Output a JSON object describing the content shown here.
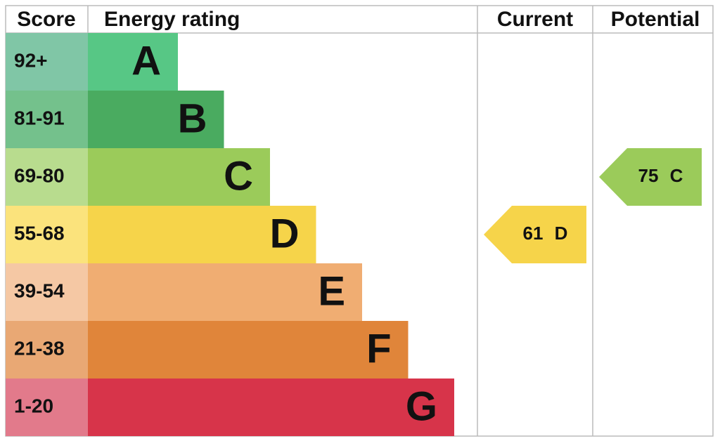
{
  "header": {
    "score": "Score",
    "rating": "Energy rating",
    "current": "Current",
    "potential": "Potential"
  },
  "bands": [
    {
      "score": "92+",
      "letter": "A",
      "color": "#57c785",
      "score_color": "#80c6a6"
    },
    {
      "score": "81-91",
      "letter": "B",
      "color": "#4aab60",
      "score_color": "#74c18c"
    },
    {
      "score": "69-80",
      "letter": "C",
      "color": "#9bcb5a",
      "score_color": "#b8dc8e"
    },
    {
      "score": "55-68",
      "letter": "D",
      "color": "#f6d44a",
      "score_color": "#fbe37c"
    },
    {
      "score": "39-54",
      "letter": "E",
      "color": "#f0ad72",
      "score_color": "#f5c8a4"
    },
    {
      "score": "21-38",
      "letter": "F",
      "color": "#e0853a",
      "score_color": "#e9a874"
    },
    {
      "score": "1-20",
      "letter": "G",
      "color": "#d7344a",
      "score_color": "#e27a8b"
    }
  ],
  "current": {
    "value": 61,
    "rating": "D"
  },
  "potential": {
    "value": 75,
    "rating": "C"
  }
}
